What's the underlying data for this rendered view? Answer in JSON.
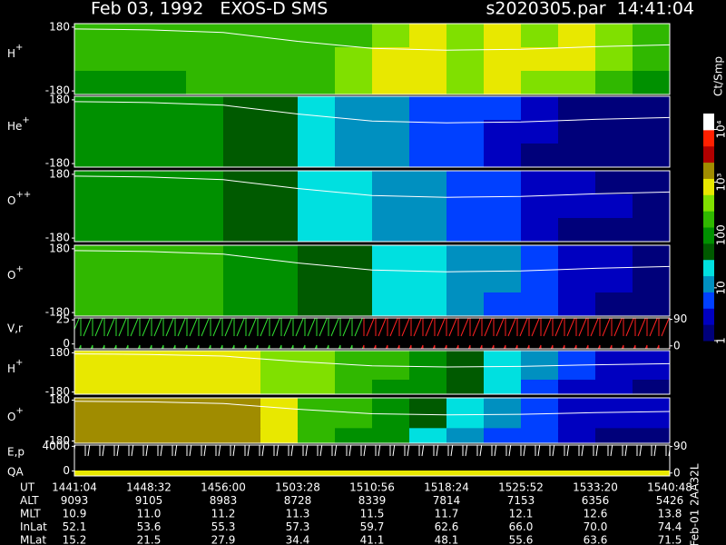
{
  "header": {
    "title": "Feb 03, 1992   EXOS-D SMS",
    "file": "s2020305.par  14:41:04"
  },
  "chart_data": [
    {
      "type": "heatmap",
      "ylabel": {
        "base": "H",
        "sup": "+"
      },
      "ylim": [
        -200,
        200
      ],
      "yticks": [
        -180,
        180
      ],
      "values": [
        [
          150,
          150,
          150,
          150,
          150,
          150,
          200,
          200,
          500,
          700,
          400,
          800,
          500,
          700,
          300,
          200
        ],
        [
          150,
          150,
          150,
          150,
          150,
          200,
          200,
          300,
          700,
          900,
          500,
          800,
          600,
          700,
          300,
          150
        ],
        [
          120,
          120,
          120,
          150,
          150,
          150,
          200,
          300,
          600,
          800,
          500,
          700,
          400,
          500,
          200,
          100
        ]
      ],
      "trace": [
        170,
        165,
        150,
        100,
        60,
        50,
        55,
        70,
        80
      ]
    },
    {
      "type": "heatmap",
      "ylabel": {
        "base": "He",
        "sup": "+"
      },
      "ylim": [
        -200,
        200
      ],
      "yticks": [
        -180,
        180
      ],
      "values": [
        [
          100,
          100,
          80,
          80,
          60,
          40,
          30,
          15,
          10,
          8,
          6,
          5,
          3,
          2,
          2,
          2
        ],
        [
          100,
          100,
          80,
          80,
          50,
          40,
          30,
          12,
          10,
          8,
          5,
          4,
          3,
          2,
          2,
          2
        ],
        [
          120,
          100,
          80,
          80,
          60,
          40,
          30,
          15,
          10,
          6,
          5,
          3,
          2,
          2,
          2,
          1
        ]
      ],
      "trace": [
        170,
        165,
        150,
        100,
        60,
        50,
        55,
        70,
        80
      ]
    },
    {
      "type": "heatmap",
      "ylabel": {
        "base": "O",
        "sup": "++"
      },
      "ylim": [
        -200,
        200
      ],
      "yticks": [
        -180,
        180
      ],
      "values": [
        [
          120,
          120,
          100,
          80,
          60,
          40,
          30,
          20,
          12,
          10,
          8,
          6,
          4,
          3,
          2,
          2
        ],
        [
          120,
          120,
          100,
          80,
          60,
          40,
          30,
          20,
          12,
          10,
          8,
          6,
          4,
          3,
          3,
          2
        ],
        [
          120,
          120,
          100,
          80,
          60,
          40,
          30,
          20,
          12,
          10,
          6,
          5,
          3,
          2,
          2,
          2
        ]
      ],
      "trace": [
        170,
        165,
        150,
        100,
        60,
        50,
        55,
        70,
        80
      ]
    },
    {
      "type": "heatmap",
      "ylabel": {
        "base": "O",
        "sup": "+"
      },
      "ylim": [
        -200,
        200
      ],
      "yticks": [
        -180,
        180
      ],
      "values": [
        [
          200,
          200,
          200,
          150,
          100,
          80,
          60,
          40,
          30,
          20,
          15,
          10,
          6,
          4,
          3,
          2
        ],
        [
          200,
          200,
          180,
          150,
          100,
          80,
          60,
          40,
          30,
          20,
          15,
          10,
          6,
          4,
          3,
          2
        ],
        [
          250,
          200,
          200,
          150,
          120,
          80,
          60,
          40,
          25,
          20,
          12,
          8,
          5,
          3,
          2,
          2
        ]
      ],
      "trace": [
        170,
        165,
        150,
        100,
        60,
        50,
        55,
        70,
        80
      ]
    },
    {
      "type": "sawtooth",
      "ylabel": "V,r",
      "ylim": [
        -5,
        27
      ],
      "yticks": [
        0,
        25
      ],
      "y2lim": [
        -10,
        95
      ],
      "y2ticks": [
        0,
        90
      ]
    },
    {
      "type": "heatmap",
      "ylabel": {
        "base": "H",
        "sup": "+"
      },
      "ylim": [
        -200,
        200
      ],
      "yticks": [
        -180,
        180
      ],
      "values": [
        [
          900,
          900,
          800,
          800,
          700,
          500,
          300,
          200,
          150,
          100,
          60,
          30,
          10,
          5,
          3,
          3
        ],
        [
          900,
          900,
          800,
          800,
          700,
          500,
          300,
          200,
          150,
          100,
          60,
          30,
          10,
          5,
          3,
          3
        ],
        [
          800,
          800,
          800,
          700,
          600,
          400,
          300,
          200,
          120,
          80,
          50,
          20,
          8,
          4,
          3,
          2
        ]
      ],
      "trace": [
        170,
        165,
        150,
        100,
        60,
        50,
        55,
        70,
        80
      ]
    },
    {
      "type": "heatmap",
      "ylabel": {
        "base": "O",
        "sup": "+"
      },
      "ylim": [
        -200,
        200
      ],
      "yticks": [
        -180,
        180
      ],
      "values": [
        [
          1500,
          1500,
          1500,
          1500,
          2000,
          800,
          200,
          150,
          100,
          40,
          20,
          10,
          6,
          4,
          3,
          3
        ],
        [
          1500,
          1500,
          1500,
          1500,
          2000,
          800,
          200,
          150,
          100,
          40,
          20,
          10,
          6,
          4,
          3,
          3
        ],
        [
          1200,
          1200,
          1500,
          1500,
          1500,
          600,
          200,
          120,
          80,
          30,
          15,
          8,
          5,
          3,
          2,
          2
        ]
      ],
      "trace": [
        170,
        165,
        150,
        100,
        60,
        50,
        55,
        70,
        80
      ]
    },
    {
      "type": "sawtooth",
      "ylabel": [
        "E,p",
        "QA"
      ],
      "ylim": [
        -800,
        4200
      ],
      "yticks": [
        0,
        4000
      ],
      "y2lim": [
        -10,
        95
      ],
      "y2ticks": [
        0,
        90
      ]
    }
  ],
  "color_scale": {
    "unit": "Ct/Smp",
    "log": true,
    "lim": [
      1,
      20000
    ],
    "ticks": [
      1,
      10,
      100,
      {
        "value": 1000,
        "label": "10³"
      },
      {
        "value": 10000,
        "label": "10⁴"
      }
    ],
    "colors": [
      "#00007a",
      "#0000c0",
      "#0040ff",
      "#0090c0",
      "#00e0e0",
      "#005a00",
      "#009000",
      "#30b800",
      "#80e000",
      "#e8e800",
      "#a08c00",
      "#b00000",
      "#ff2000",
      "#ffffff"
    ]
  },
  "table": {
    "rows": [
      {
        "label": "UT",
        "cells": [
          "1441:04",
          "1448:32",
          "1456:00",
          "1503:28",
          "1510:56",
          "1518:24",
          "1525:52",
          "1533:20",
          "1540:48"
        ]
      },
      {
        "label": "ALT",
        "cells": [
          "9093",
          "9105",
          "8983",
          "8728",
          "8339",
          "7814",
          "7153",
          "6356",
          "5426"
        ]
      },
      {
        "label": "MLT",
        "cells": [
          "10.9",
          "11.0",
          "11.2",
          "11.3",
          "11.5",
          "11.7",
          "12.1",
          "12.6",
          "13.8"
        ]
      },
      {
        "label": "InLat",
        "cells": [
          "52.1",
          "53.6",
          "55.3",
          "57.3",
          "59.7",
          "62.6",
          "66.0",
          "70.0",
          "74.4"
        ]
      },
      {
        "label": "MLat",
        "cells": [
          "15.2",
          "21.5",
          "27.9",
          "34.4",
          "41.1",
          "48.1",
          "55.6",
          "63.6",
          "71.5"
        ]
      }
    ]
  },
  "footer_note": "Feb-01 2AA32L"
}
